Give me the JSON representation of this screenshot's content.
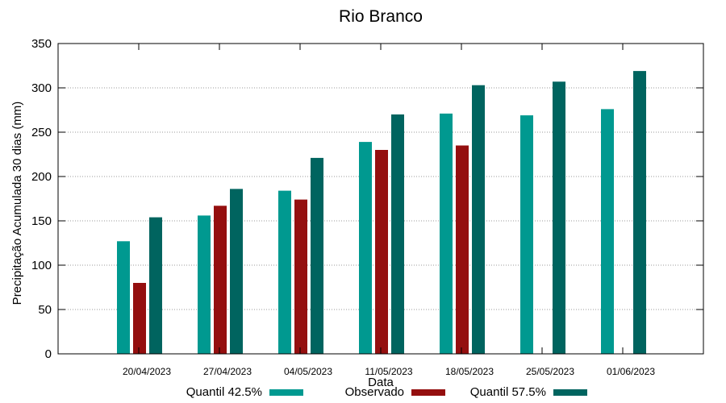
{
  "chart_data": {
    "type": "bar",
    "title": "Rio Branco",
    "xlabel": "Data",
    "ylabel": "Precipitação Acumulada 30 dias (mm)",
    "ylim": [
      0,
      350
    ],
    "yticks": [
      0,
      50,
      100,
      150,
      200,
      250,
      300,
      350
    ],
    "grid": true,
    "legend_position": "bottom",
    "categories": [
      "20/04/2023",
      "27/04/2023",
      "04/05/2023",
      "11/05/2023",
      "18/05/2023",
      "25/05/2023",
      "01/06/2023"
    ],
    "series": [
      {
        "name": "Quantil 42.5%",
        "color": "#009990",
        "values": [
          127,
          156,
          184,
          239,
          271,
          269,
          276
        ]
      },
      {
        "name": "Observado",
        "color": "#940f0f",
        "values": [
          80,
          167,
          174,
          230,
          235,
          null,
          null
        ]
      },
      {
        "name": "Quantil 57.5%",
        "color": "#00645f",
        "values": [
          154,
          186,
          221,
          270,
          303,
          307,
          319
        ]
      }
    ]
  }
}
